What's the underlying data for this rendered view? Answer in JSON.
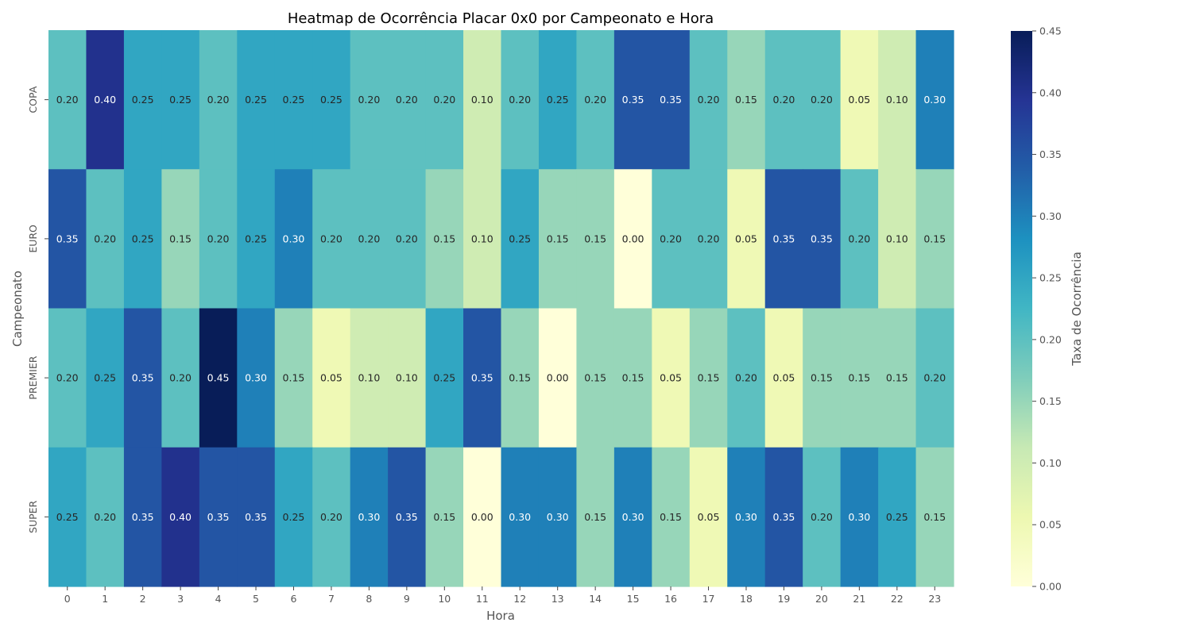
{
  "chart_data": {
    "type": "heatmap",
    "title": "Heatmap de Ocorrência Placar 0x0 por Campeonato e Hora",
    "xlabel": "Hora",
    "ylabel": "Campeonato",
    "x_categories": [
      "0",
      "1",
      "2",
      "3",
      "4",
      "5",
      "6",
      "7",
      "8",
      "9",
      "10",
      "11",
      "12",
      "13",
      "14",
      "15",
      "16",
      "17",
      "18",
      "19",
      "20",
      "21",
      "22",
      "23"
    ],
    "y_categories": [
      "COPA",
      "EURO",
      "PREMIER",
      "SUPER"
    ],
    "values": [
      [
        0.2,
        0.4,
        0.25,
        0.25,
        0.2,
        0.25,
        0.25,
        0.25,
        0.2,
        0.2,
        0.2,
        0.1,
        0.2,
        0.25,
        0.2,
        0.35,
        0.35,
        0.2,
        0.15,
        0.2,
        0.2,
        0.05,
        0.1,
        0.3
      ],
      [
        0.35,
        0.2,
        0.25,
        0.15,
        0.2,
        0.25,
        0.3,
        0.2,
        0.2,
        0.2,
        0.15,
        0.1,
        0.25,
        0.15,
        0.15,
        0.0,
        0.2,
        0.2,
        0.05,
        0.35,
        0.35,
        0.2,
        0.1,
        0.15
      ],
      [
        0.2,
        0.25,
        0.35,
        0.2,
        0.45,
        0.3,
        0.15,
        0.05,
        0.1,
        0.1,
        0.25,
        0.35,
        0.15,
        0.0,
        0.15,
        0.15,
        0.05,
        0.15,
        0.2,
        0.05,
        0.15,
        0.15,
        0.15,
        0.2
      ],
      [
        0.25,
        0.2,
        0.35,
        0.4,
        0.35,
        0.35,
        0.25,
        0.2,
        0.3,
        0.35,
        0.15,
        0.0,
        0.3,
        0.3,
        0.15,
        0.3,
        0.15,
        0.05,
        0.3,
        0.35,
        0.2,
        0.3,
        0.25,
        0.15
      ]
    ],
    "value_format": "0.00",
    "colorbar": {
      "label": "Taxa de Ocorrência",
      "range": [
        0,
        0.45
      ],
      "ticks": [
        "0.00",
        "0.05",
        "0.10",
        "0.15",
        "0.20",
        "0.25",
        "0.30",
        "0.35",
        "0.40",
        "0.45"
      ],
      "colormap": "YlGnBu",
      "colors": [
        "#ffffd9",
        "#edf8b1",
        "#c7e9b4",
        "#7fcdbb",
        "#41b6c4",
        "#1d91c0",
        "#225ea8",
        "#253494",
        "#081d58"
      ]
    },
    "grid": false
  }
}
